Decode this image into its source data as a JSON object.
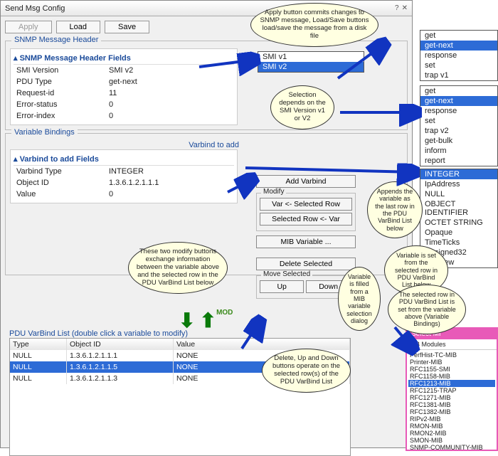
{
  "window": {
    "title": "Send Msg Config"
  },
  "toolbar": {
    "apply": "Apply",
    "load": "Load",
    "save": "Save"
  },
  "header_group": {
    "title": "SNMP Message Header",
    "panel_title": "SNMP Message Header Fields",
    "rows": [
      {
        "k": "SMI Version",
        "v": "SMI v2"
      },
      {
        "k": "PDU Type",
        "v": "get-next"
      },
      {
        "k": "Request-id",
        "v": "11"
      },
      {
        "k": "Error-status",
        "v": "0"
      },
      {
        "k": "Error-index",
        "v": "0"
      }
    ]
  },
  "smi_dropdown": {
    "opts": [
      "SMI v1",
      "SMI v2"
    ],
    "selected": 1
  },
  "pdu_v1": {
    "opts": [
      "get",
      "get-next",
      "response",
      "set",
      "trap v1"
    ],
    "selected": 1
  },
  "pdu_v2": {
    "opts": [
      "get",
      "get-next",
      "response",
      "set",
      "trap v2",
      "get-bulk",
      "inform",
      "report"
    ],
    "selected": 1
  },
  "varbind_types": {
    "opts": [
      "INTEGER",
      "IpAddress",
      "NULL",
      "OBJECT IDENTIFIER",
      "OCTET STRING",
      "Opaque",
      "TimeTicks",
      "Unsigned32",
      "MibView"
    ],
    "selected": 0
  },
  "varbind_group": {
    "title": "Variable Bindings",
    "add_title": "Varbind to add",
    "panel_title": "Varbind to add Fields",
    "rows": [
      {
        "k": "Varbind Type",
        "v": "INTEGER"
      },
      {
        "k": "Object ID",
        "v": "1.3.6.1.2.1.1.1"
      },
      {
        "k": "Value",
        "v": "0"
      }
    ]
  },
  "vb_buttons": {
    "add": "Add Varbind",
    "modify_title": "Modify",
    "var_to_row": "Var <- Selected Row",
    "row_to_var": "Selected Row <- Var",
    "mib": "MIB Variable ...",
    "delete": "Delete Selected",
    "move_title": "Move Selected",
    "up": "Up",
    "down": "Down"
  },
  "arrows_label": {
    "down": "↓",
    "up": "↑",
    "mod": "MOD"
  },
  "pdu_table": {
    "title": "PDU VarBind List   (double click a variable to modify)",
    "cols": [
      "Type",
      "Object ID",
      "Value"
    ],
    "rows": [
      {
        "t": "NULL",
        "o": "1.3.6.1.2.1.1.1",
        "v": "NONE",
        "sel": false
      },
      {
        "t": "NULL",
        "o": "1.3.6.1.2.1.1.5",
        "v": "NONE",
        "sel": true
      },
      {
        "t": "NULL",
        "o": "1.3.6.1.2.1.1.3",
        "v": "NONE",
        "sel": false
      }
    ]
  },
  "callouts": {
    "c1": "Apply button commits changes to SNMP message, Load/Save buttons load/save the message from a disk file",
    "c2": "Selection depends on the SMI Version v1 or V2",
    "c3": "These two modify buttons exchange information between the variable above and the selected row in the PDU VarBind List below",
    "c4": "Appends the variable as the last row in the PDU VarBind List below",
    "c5": "Variable is set from the selected row in PDU VarBind List below",
    "c6": "The selected row in PDU VarBind List is set from the variable above (Variable Bindings)",
    "c7": "Variable is filled from a MIB variable selection dialog",
    "c8": "Delete, Up and Down buttons operate on the selected row(s) of the PDU VarBind List"
  },
  "mib_popup": {
    "title": "Select MI",
    "items": [
      "PerfHist-TC-MIB",
      "Printer-MIB",
      "RFC1155-SMI",
      "RFC1158-MIB",
      "RFC1213-MIB",
      "RFC1215-TRAP",
      "RFC1271-MIB",
      "RFC1381-MIB",
      "RFC1382-MIB",
      "RIPv2-MIB",
      "RMON-MIB",
      "RMON2-MIB",
      "SMON-MIB",
      "SNMP-COMMUNITY-MIB"
    ],
    "selected": 4
  },
  "colors": {
    "accent": "#2d6bd6",
    "arrow": "#1134c0",
    "callout_bg": "#ffffe1"
  }
}
